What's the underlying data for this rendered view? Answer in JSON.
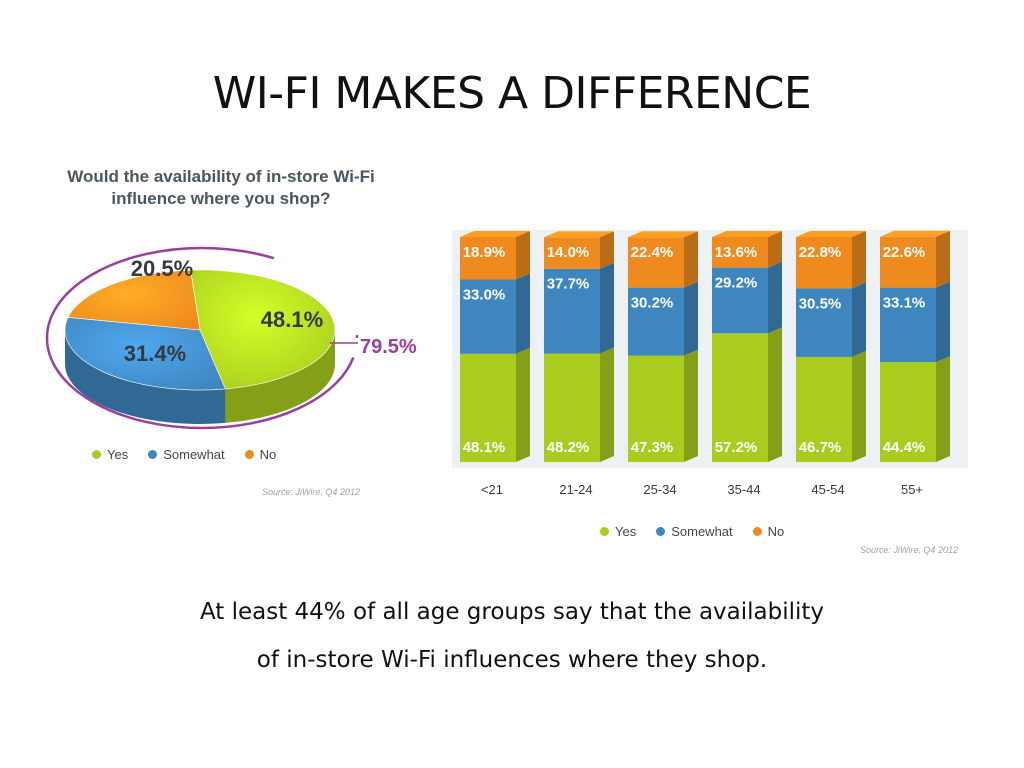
{
  "slide": {
    "title": "WI-FI MAKES A DIFFERENCE",
    "caption_line1": "At least 44% of all age groups say that the availability",
    "caption_line2": "of in-store Wi-Fi influences where they shop."
  },
  "colors": {
    "yes": "#a9cc1f",
    "somewhat": "#3f86bf",
    "no": "#ee8a1e"
  },
  "chart_data": [
    {
      "type": "pie",
      "title": "Would the availability of in-store Wi-Fi influence where you shop?",
      "slices": [
        {
          "name": "Yes",
          "value": 48.1,
          "label": "48.1%"
        },
        {
          "name": "Somewhat",
          "value": 31.4,
          "label": "31.4%"
        },
        {
          "name": "No",
          "value": 20.5,
          "label": "20.5%"
        }
      ],
      "annotation": "79.5%",
      "legend": [
        "Yes",
        "Somewhat",
        "No"
      ],
      "legend_position": "bottom",
      "source": "Source: JiWire, Q4 2012"
    },
    {
      "type": "bar",
      "stacked": true,
      "categories": [
        "<21",
        "21-24",
        "25-34",
        "35-44",
        "45-54",
        "55+"
      ],
      "series": [
        {
          "name": "Yes",
          "values": [
            48.1,
            48.2,
            47.3,
            57.2,
            46.7,
            44.4
          ],
          "labels": [
            "48.1%",
            "48.2%",
            "47.3%",
            "57.2%",
            "46.7%",
            "44.4%"
          ]
        },
        {
          "name": "Somewhat",
          "values": [
            33.0,
            37.7,
            30.2,
            29.2,
            30.5,
            33.1
          ],
          "labels": [
            "33.0%",
            "37.7%",
            "30.2%",
            "29.2%",
            "30.5%",
            "33.1%"
          ]
        },
        {
          "name": "No",
          "values": [
            18.9,
            14.0,
            22.4,
            13.6,
            22.8,
            22.6
          ],
          "labels": [
            "18.9%",
            "14.0%",
            "22.4%",
            "13.6%",
            "22.8%",
            "22.6%"
          ]
        }
      ],
      "ylim": [
        0,
        100
      ],
      "legend": [
        "Yes",
        "Somewhat",
        "No"
      ],
      "legend_position": "bottom",
      "source": "Source: JiWire, Q4 2012"
    }
  ]
}
